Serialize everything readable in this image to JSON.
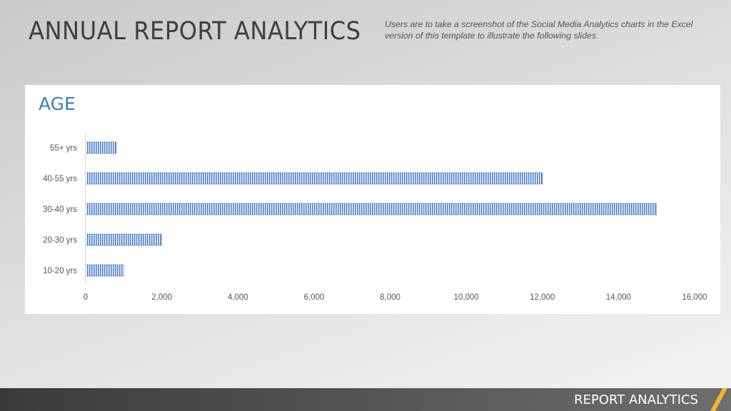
{
  "slide": {
    "title": "ANNUAL REPORT ANALYTICS",
    "note": "Users are to take a screenshot of the Social Media Analytics charts in the Excel version of this template to illustrate the following slides."
  },
  "footer": {
    "label": "REPORT ANALYTICS"
  },
  "colors": {
    "bar": "#4a7cc9",
    "title_accent": "#3c7cc4",
    "footer_stripe": "#f0b72a"
  },
  "chart_data": {
    "type": "bar",
    "orientation": "horizontal",
    "title": "AGE",
    "categories": [
      "55+ yrs",
      "40-55 yrs",
      "30-40 yrs",
      "20-30 yrs",
      "10-20 yrs"
    ],
    "values": [
      800,
      12000,
      15000,
      2000,
      1000
    ],
    "xlim": [
      0,
      16000
    ],
    "xticks": [
      0,
      2000,
      4000,
      6000,
      8000,
      10000,
      12000,
      14000,
      16000
    ],
    "xtick_labels": [
      "0",
      "2,000",
      "4,000",
      "6,000",
      "8,000",
      "10,000",
      "12,000",
      "14,000",
      "16,000"
    ],
    "grid": false,
    "legend": "none"
  }
}
